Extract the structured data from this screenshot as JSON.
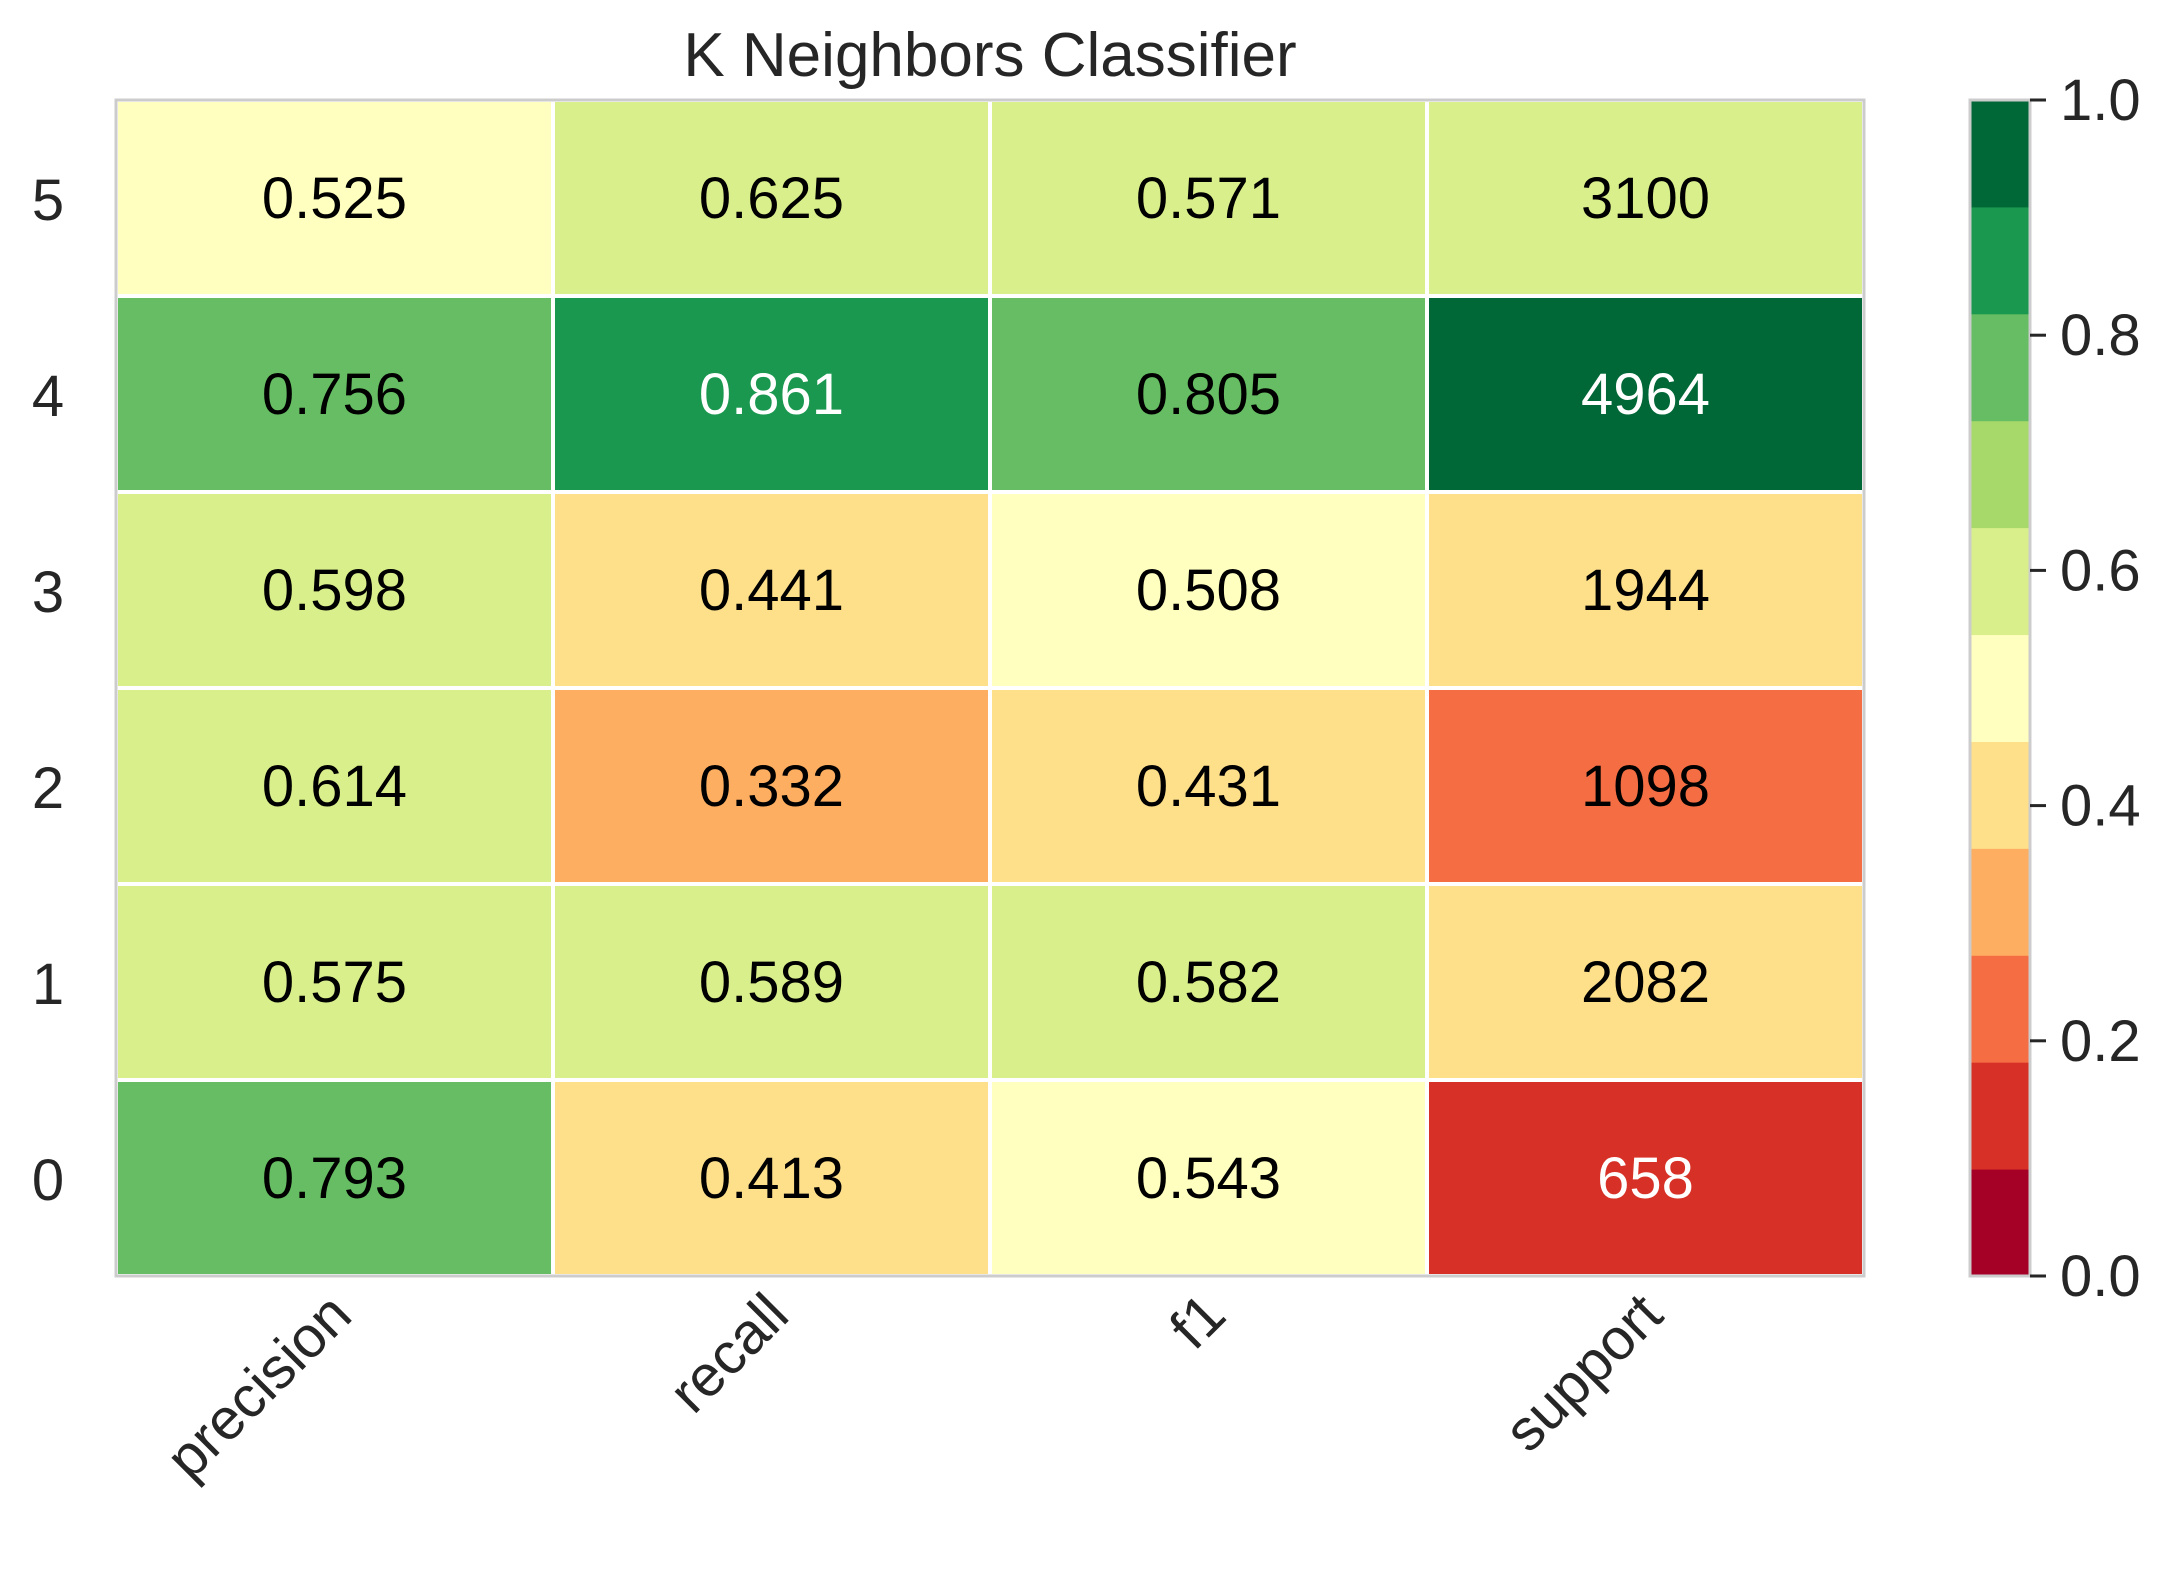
{
  "chart_data": {
    "type": "heatmap",
    "title": "K Neighbors Classifier",
    "xlabel": "",
    "ylabel": "",
    "x_categories": [
      "precision",
      "recall",
      "f1",
      "support"
    ],
    "y_categories": [
      "5",
      "4",
      "3",
      "2",
      "1",
      "0"
    ],
    "cells": [
      {
        "class": "5",
        "precision": "0.525",
        "recall": "0.625",
        "f1": "0.571",
        "support": "3100"
      },
      {
        "class": "4",
        "precision": "0.756",
        "recall": "0.861",
        "f1": "0.805",
        "support": "4964"
      },
      {
        "class": "3",
        "precision": "0.598",
        "recall": "0.441",
        "f1": "0.508",
        "support": "1944"
      },
      {
        "class": "2",
        "precision": "0.614",
        "recall": "0.332",
        "f1": "0.431",
        "support": "1098"
      },
      {
        "class": "1",
        "precision": "0.575",
        "recall": "0.589",
        "f1": "0.582",
        "support": "2082"
      },
      {
        "class": "0",
        "precision": "0.793",
        "recall": "0.413",
        "f1": "0.543",
        "support": "658"
      }
    ],
    "support_color_fraction": {
      "3100": 0.624,
      "4964": 1.0,
      "1944": 0.392,
      "1098": 0.221,
      "2082": 0.419,
      "658": 0.133
    },
    "colorbar": {
      "colormap": "RdYlGn",
      "range": [
        0.0,
        1.0
      ],
      "ticks": [
        "0.0",
        "0.2",
        "0.4",
        "0.6",
        "0.8",
        "1.0"
      ],
      "bins": [
        "#a50026",
        "#d73027",
        "#f46d43",
        "#fdae61",
        "#fee08b",
        "#ffffbf",
        "#d9ef8b",
        "#a6d96a",
        "#66bd63",
        "#1a9850",
        "#006837"
      ]
    },
    "grid": false,
    "cell_border_color": "#ffffff",
    "frame_color": "#cccccc"
  }
}
